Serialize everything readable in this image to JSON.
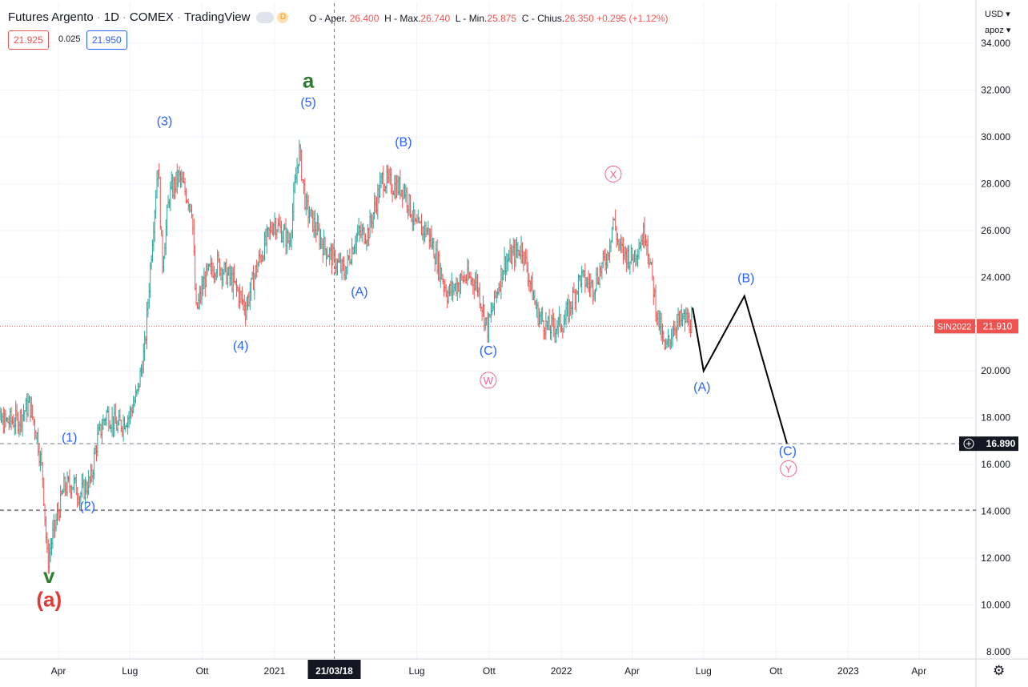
{
  "header": {
    "title": "Futures Argento",
    "interval": "1D",
    "exchange": "COMEX",
    "platform": "TradingView",
    "badge": "D",
    "ohlc": {
      "open_label": "O - Aper.",
      "open": "26.400",
      "high_label": "H - Max.",
      "high": "26.740",
      "low_label": "L - Min.",
      "low": "25.875",
      "close_label": "C - Chius.",
      "close": "26.350",
      "change": "+0.295 (+1.12%)"
    },
    "bid": "21.925",
    "spread": "0.025",
    "ask": "21.950"
  },
  "scale": {
    "currency": "USD",
    "mode": "apoz"
  },
  "colors": {
    "blue": "#2962ff",
    "pink": "#f06292",
    "green": "#2e7d32",
    "red": "#e53935",
    "up": "#26a69a",
    "down": "#ef5350"
  },
  "chart_data": {
    "type": "line",
    "title": "",
    "ylim": [
      8,
      34
    ],
    "y_ticks": [
      "8.000",
      "10.000",
      "12.000",
      "14.000",
      "16.000",
      "18.000",
      "20.000",
      "22.000",
      "24.000",
      "26.000",
      "28.000",
      "30.000",
      "32.000",
      "34.000"
    ],
    "x_ticks": [
      {
        "label": "Apr",
        "date": "2020-04-01"
      },
      {
        "label": "Lug",
        "date": "2020-07-01"
      },
      {
        "label": "Ott",
        "date": "2020-10-01"
      },
      {
        "label": "2021",
        "date": "2021-01-01"
      },
      {
        "label": "Lug",
        "date": "2021-07-01"
      },
      {
        "label": "Ott",
        "date": "2021-10-01"
      },
      {
        "label": "2022",
        "date": "2022-01-01"
      },
      {
        "label": "Apr",
        "date": "2022-04-01"
      },
      {
        "label": "Lug",
        "date": "2022-07-01"
      },
      {
        "label": "Ott",
        "date": "2022-10-01"
      },
      {
        "label": "2023",
        "date": "2023-01-01"
      },
      {
        "label": "Apr",
        "date": "2023-04-01"
      }
    ],
    "crosshair_date": {
      "label": "21/03/18",
      "date": "2021-03-18"
    },
    "price_series": {
      "name": "SIN2022",
      "points": [
        [
          "2020-01-02",
          18.0
        ],
        [
          "2020-01-20",
          17.8
        ],
        [
          "2020-02-10",
          17.9
        ],
        [
          "2020-02-24",
          18.6
        ],
        [
          "2020-03-05",
          17.2
        ],
        [
          "2020-03-12",
          15.5
        ],
        [
          "2020-03-18",
          11.8
        ],
        [
          "2020-03-25",
          13.0
        ],
        [
          "2020-04-08",
          15.0
        ],
        [
          "2020-04-20",
          15.2
        ],
        [
          "2020-04-28",
          14.7
        ],
        [
          "2020-05-12",
          15.3
        ],
        [
          "2020-05-20",
          17.0
        ],
        [
          "2020-06-01",
          18.2
        ],
        [
          "2020-06-15",
          17.6
        ],
        [
          "2020-06-30",
          18.1
        ],
        [
          "2020-07-10",
          19.0
        ],
        [
          "2020-07-20",
          21.0
        ],
        [
          "2020-07-28",
          25.0
        ],
        [
          "2020-08-06",
          29.0
        ],
        [
          "2020-08-11",
          24.5
        ],
        [
          "2020-08-20",
          27.5
        ],
        [
          "2020-09-01",
          28.3
        ],
        [
          "2020-09-18",
          27.0
        ],
        [
          "2020-09-23",
          22.5
        ],
        [
          "2020-10-05",
          24.0
        ],
        [
          "2020-10-20",
          24.6
        ],
        [
          "2020-11-09",
          23.8
        ],
        [
          "2020-11-25",
          22.7
        ],
        [
          "2020-12-10",
          24.5
        ],
        [
          "2020-12-31",
          26.4
        ],
        [
          "2021-01-20",
          25.5
        ],
        [
          "2021-02-01",
          29.5
        ],
        [
          "2021-02-10",
          27.0
        ],
        [
          "2021-03-05",
          25.3
        ],
        [
          "2021-03-31",
          24.2
        ],
        [
          "2021-04-15",
          25.8
        ],
        [
          "2021-04-30",
          25.9
        ],
        [
          "2021-05-18",
          28.2
        ],
        [
          "2021-06-01",
          27.9
        ],
        [
          "2021-06-15",
          27.8
        ],
        [
          "2021-06-30",
          26.1
        ],
        [
          "2021-07-15",
          26.0
        ],
        [
          "2021-08-09",
          23.3
        ],
        [
          "2021-08-31",
          24.0
        ],
        [
          "2021-09-15",
          23.8
        ],
        [
          "2021-09-29",
          21.8
        ],
        [
          "2021-10-20",
          24.6
        ],
        [
          "2021-11-12",
          25.3
        ],
        [
          "2021-12-01",
          22.5
        ],
        [
          "2021-12-15",
          21.8
        ],
        [
          "2022-01-05",
          22.1
        ],
        [
          "2022-01-25",
          24.0
        ],
        [
          "2022-02-10",
          23.6
        ],
        [
          "2022-03-01",
          25.0
        ],
        [
          "2022-03-08",
          26.5
        ],
        [
          "2022-03-16",
          25.2
        ],
        [
          "2022-04-01",
          24.8
        ],
        [
          "2022-04-18",
          26.0
        ],
        [
          "2022-05-02",
          22.6
        ],
        [
          "2022-05-13",
          20.8
        ],
        [
          "2022-05-25",
          22.0
        ],
        [
          "2022-06-08",
          22.2
        ],
        [
          "2022-06-17",
          22.0
        ]
      ]
    },
    "projection_path": [
      [
        "2022-06-17",
        22.7
      ],
      [
        "2022-07-01",
        20.0
      ],
      [
        "2022-08-22",
        23.2
      ],
      [
        "2022-10-15",
        16.9
      ]
    ],
    "horizontal_lines": [
      {
        "label": "SIN2022",
        "value": 21.91,
        "text": "21.910",
        "style": "dotted-red"
      },
      {
        "value": 16.89,
        "text": "16.890",
        "style": "dashed-grey"
      },
      {
        "value": 14.05,
        "style": "dashed-black"
      }
    ],
    "wave_labels": [
      {
        "text": "(1)",
        "date": "2020-04-15",
        "y": 16.98,
        "color": "blue"
      },
      {
        "text": "(2)",
        "date": "2020-05-08",
        "y": 14.03,
        "color": "blue"
      },
      {
        "text": "(3)",
        "date": "2020-08-14",
        "y": 30.5,
        "color": "blue"
      },
      {
        "text": "(4)",
        "date": "2020-11-19",
        "y": 20.9,
        "color": "blue"
      },
      {
        "text": "(5)",
        "date": "2021-02-13",
        "y": 31.3,
        "color": "blue"
      },
      {
        "text": "a",
        "date": "2021-02-13",
        "y": 32.1,
        "color": "green",
        "size": "big"
      },
      {
        "text": "(A)",
        "date": "2021-04-19",
        "y": 23.2,
        "color": "blue"
      },
      {
        "text": "(B)",
        "date": "2021-06-14",
        "y": 29.6,
        "color": "blue"
      },
      {
        "text": "(C)",
        "date": "2021-09-30",
        "y": 20.7,
        "color": "blue"
      },
      {
        "text": "W",
        "date": "2021-09-30",
        "y": 19.43,
        "color": "pink",
        "circled": true
      },
      {
        "text": "X",
        "date": "2022-03-08",
        "y": 28.24,
        "color": "pink",
        "circled": true
      },
      {
        "text": "(B)",
        "date": "2022-08-24",
        "y": 23.79,
        "color": "blue"
      },
      {
        "text": "(A)",
        "date": "2022-06-29",
        "y": 19.13,
        "color": "blue"
      },
      {
        "text": "(C)",
        "date": "2022-10-16",
        "y": 16.4,
        "color": "blue"
      },
      {
        "text": "Y",
        "date": "2022-10-17",
        "y": 15.65,
        "color": "pink",
        "circled": true
      },
      {
        "text": "v",
        "date": "2020-03-20",
        "y": 10.95,
        "color": "green",
        "size": "big"
      },
      {
        "text": "(a)",
        "date": "2020-03-20",
        "y": 9.94,
        "color": "red",
        "size": "big"
      }
    ]
  }
}
